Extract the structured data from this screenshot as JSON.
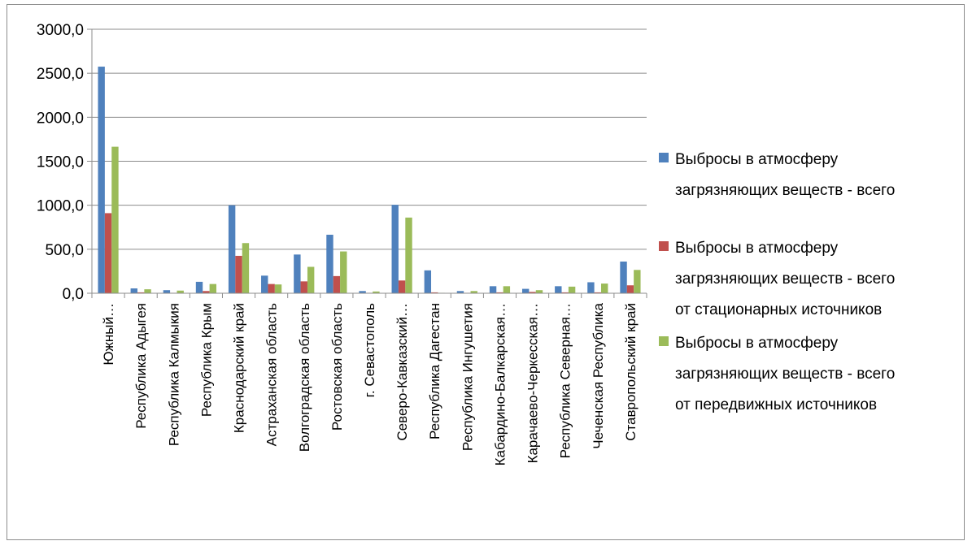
{
  "chart_data": {
    "type": "bar",
    "title": "",
    "xlabel": "",
    "ylabel": "",
    "ylim": [
      0,
      3000
    ],
    "y_ticks": [
      "0,0",
      "500,0",
      "1000,0",
      "1500,0",
      "2000,0",
      "2500,0",
      "3000,0"
    ],
    "y_tick_values": [
      0,
      500,
      1000,
      1500,
      2000,
      2500,
      3000
    ],
    "grid": true,
    "legend_position": "right",
    "categories": [
      "Южный…",
      "Республика Адыгея",
      "Республика Калмыкия",
      "Республика Крым",
      "Краснодарский край",
      "Астраханская область",
      "Волгоградская область",
      "Ростовская область",
      "г. Севастополь",
      "Северо-Кавказский…",
      "Республика Дагестан",
      "Республика Ингушетия",
      "Кабардино-Балкарская…",
      "Карачаево-Черкесская…",
      "Республика Северная…",
      "Чеченская Республика",
      "Ставропольский край"
    ],
    "series": [
      {
        "name": "Выбросы в атмосферу загрязняющих веществ - всего",
        "legend_lines": [
          "Выбросы в атмосферу",
          "загрязняющих веществ - всего"
        ],
        "color": "#4f81bd",
        "values": [
          2575,
          55,
          35,
          130,
          1000,
          200,
          440,
          665,
          25,
          1005,
          260,
          25,
          80,
          50,
          80,
          125,
          360
        ]
      },
      {
        "name": "Выбросы в атмосферу загрязняющих веществ - всего от стационарных источников",
        "legend_lines": [
          "Выбросы в атмосферу",
          "загрязняющих веществ - всего",
          "от стационарных источников"
        ],
        "color": "#c0504d",
        "values": [
          910,
          10,
          5,
          25,
          425,
          105,
          135,
          195,
          5,
          145,
          10,
          5,
          10,
          15,
          10,
          10,
          90
        ]
      },
      {
        "name": "Выбросы в атмосферу загрязняющих веществ - всего от передвижных источников",
        "legend_lines": [
          "Выбросы в атмосферу",
          "загрязняющих веществ - всего",
          "от передвижных источников"
        ],
        "color": "#9bbb59",
        "values": [
          1665,
          45,
          30,
          105,
          570,
          100,
          300,
          475,
          20,
          860,
          5,
          25,
          80,
          35,
          75,
          110,
          265
        ]
      }
    ]
  }
}
